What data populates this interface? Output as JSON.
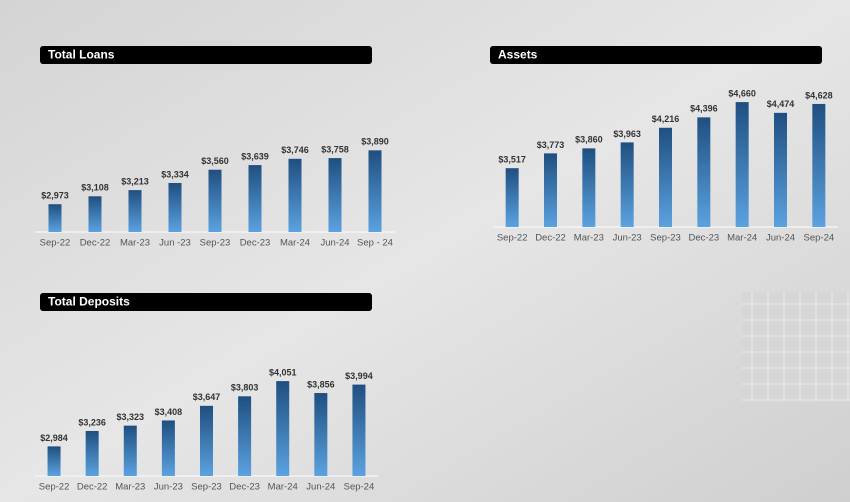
{
  "chart_data": [
    {
      "type": "bar",
      "title": "Total Loans",
      "categories": [
        "Sep-22",
        "Dec-22",
        "Mar-23",
        "Jun -23",
        "Sep-23",
        "Dec-23",
        "Mar-24",
        "Jun-24",
        "Sep - 24"
      ],
      "values": [
        2973,
        3108,
        3213,
        3334,
        3560,
        3639,
        3746,
        3758,
        3890
      ],
      "value_labels": [
        "$2,973",
        "$3,108",
        "$3,213",
        "$3,334",
        "$3,560",
        "$3,639",
        "$3,746",
        "$3,758",
        "$3,890"
      ],
      "color": "#235a90",
      "ylim": [
        2500,
        4100
      ]
    },
    {
      "type": "bar",
      "title": "Assets",
      "categories": [
        "Sep-22",
        "Dec-22",
        "Mar-23",
        "Jun-23",
        "Sep-23",
        "Dec-23",
        "Mar-24",
        "Jun-24",
        "Sep-24"
      ],
      "values": [
        3517,
        3773,
        3860,
        3963,
        4216,
        4396,
        4660,
        4474,
        4628
      ],
      "value_labels": [
        "$3,517",
        "$3,773",
        "$3,860",
        "$3,963",
        "$4,216",
        "$4,396",
        "$4,660",
        "$4,474",
        "$4,628"
      ],
      "color": "#235a90",
      "ylim": [
        2500,
        4800
      ]
    },
    {
      "type": "bar",
      "title": "Total Deposits",
      "categories": [
        "Sep-22",
        "Dec-22",
        "Mar-23",
        "Jun-23",
        "Sep-23",
        "Dec-23",
        "Mar-24",
        "Jun-24",
        "Sep-24"
      ],
      "values": [
        2984,
        3236,
        3323,
        3408,
        3647,
        3803,
        4051,
        3856,
        3994
      ],
      "value_labels": [
        "$2,984",
        "$3,236",
        "$3,323",
        "$3,408",
        "$3,647",
        "$3,803",
        "$4,051",
        "$3,856",
        "$3,994"
      ],
      "color": "#235a90",
      "ylim": [
        2500,
        4200
      ]
    }
  ]
}
